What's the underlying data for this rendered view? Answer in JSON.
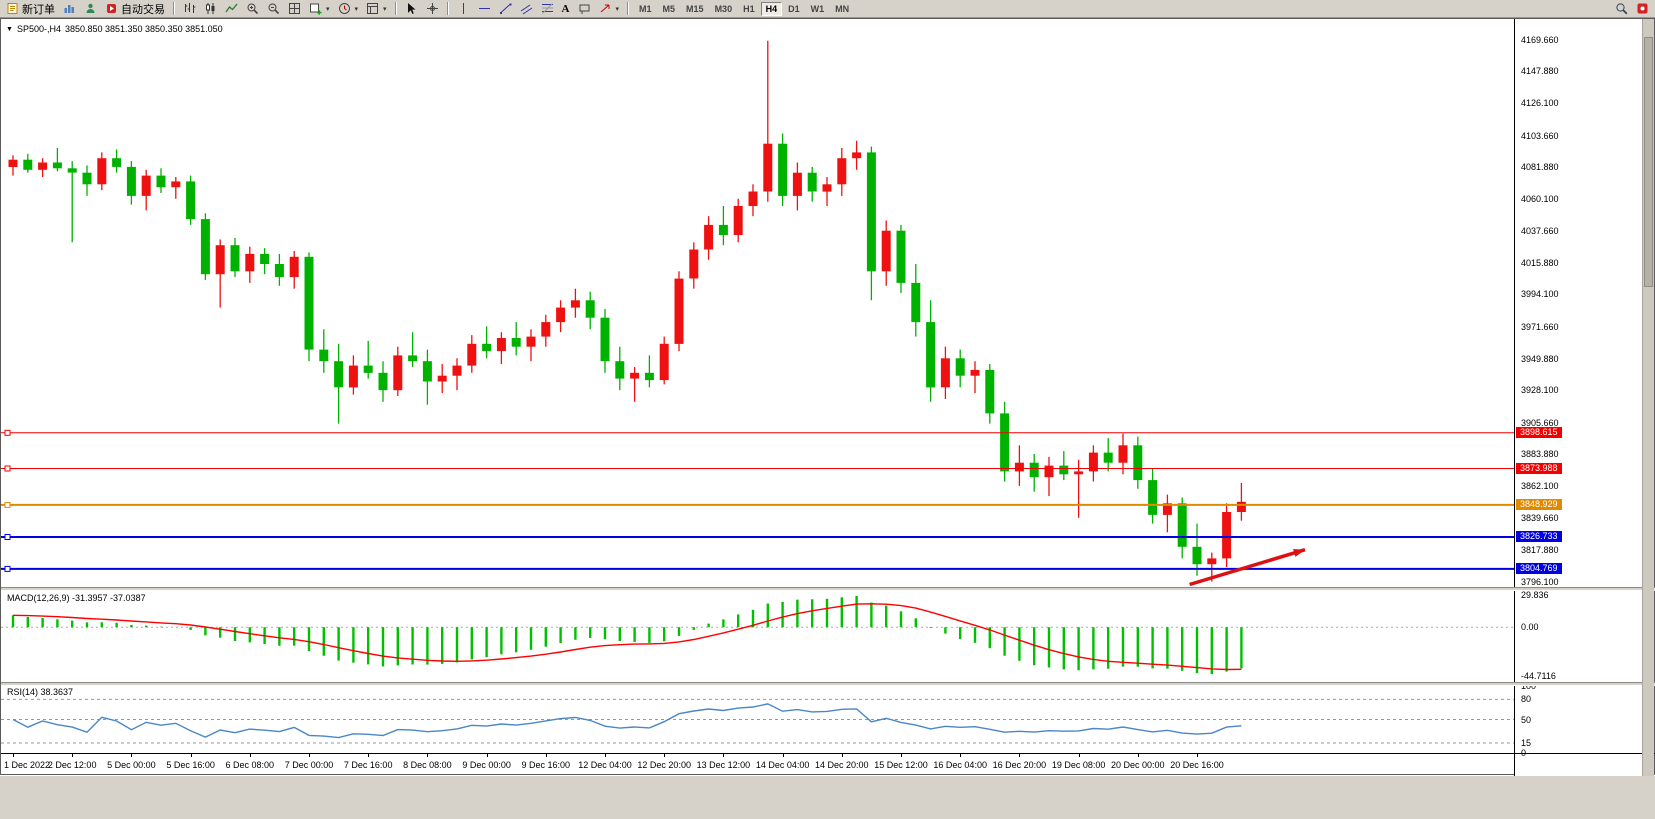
{
  "colors": {
    "bull": "#ee1111",
    "bear": "#00b200",
    "macd_hist": "#00c000",
    "macd_signal": "#ff0000",
    "rsi_line": "#4a86c8",
    "arrow": "#dd1111"
  },
  "toolbar": {
    "new_order": "新订单",
    "auto_trading": "自动交易",
    "text_tool": "A",
    "timeframes": [
      "M1",
      "M5",
      "M15",
      "M30",
      "H1",
      "H4",
      "D1",
      "W1",
      "MN"
    ],
    "active_timeframe": "H4"
  },
  "chart_header": {
    "dropdown": "▼",
    "symbol_period": "SP500-,H4",
    "ohlc": "3850.850 3851.350 3850.350 3851.050"
  },
  "indicators": {
    "macd_label": "MACD(12,26,9) -31.3957 -37.0387",
    "rsi_label": "RSI(14) 38.3637"
  },
  "chart_data": {
    "type": "candlestick",
    "symbol": "SP500-",
    "timeframe": "H4",
    "price_ticks": [
      "4169.660",
      "4147.880",
      "4126.100",
      "4103.660",
      "4081.880",
      "4060.100",
      "4037.660",
      "4015.880",
      "3994.100",
      "3971.660",
      "3949.880",
      "3928.100",
      "3905.660",
      "3883.880",
      "3862.100",
      "3839.660",
      "3817.880",
      "3796.100"
    ],
    "hlines": [
      {
        "price": 3898.615,
        "label": "3898.615",
        "color": "#f40000",
        "width": 1
      },
      {
        "price": 3873.988,
        "label": "3873.988",
        "color": "#f40000",
        "width": 1
      },
      {
        "price": 3848.929,
        "label": "3848.929",
        "color": "#e08a00",
        "width": 2
      },
      {
        "price": 3826.733,
        "label": "3826.733",
        "color": "#0000e0",
        "width": 2
      },
      {
        "price": 3804.769,
        "label": "3804.769",
        "color": "#0000e0",
        "width": 2
      }
    ],
    "candles": [
      [
        4082,
        4090,
        4076,
        4087
      ],
      [
        4087,
        4091,
        4078,
        4080
      ],
      [
        4080,
        4088,
        4075,
        4085
      ],
      [
        4085,
        4095,
        4079,
        4081
      ],
      [
        4081,
        4086,
        4030,
        4078
      ],
      [
        4078,
        4083,
        4062,
        4070
      ],
      [
        4070,
        4092,
        4066,
        4088
      ],
      [
        4088,
        4094,
        4078,
        4082
      ],
      [
        4082,
        4086,
        4056,
        4062
      ],
      [
        4062,
        4080,
        4052,
        4076
      ],
      [
        4076,
        4081,
        4064,
        4068
      ],
      [
        4068,
        4075,
        4060,
        4072
      ],
      [
        4072,
        4076,
        4042,
        4046
      ],
      [
        4046,
        4050,
        4004,
        4008
      ],
      [
        4008,
        4032,
        3985,
        4028
      ],
      [
        4028,
        4033,
        4006,
        4010
      ],
      [
        4010,
        4027,
        4002,
        4022
      ],
      [
        4022,
        4026,
        4008,
        4015
      ],
      [
        4015,
        4022,
        4000,
        4006
      ],
      [
        4006,
        4024,
        3998,
        4020
      ],
      [
        4020,
        4023,
        3948,
        3956
      ],
      [
        3956,
        3970,
        3940,
        3948
      ],
      [
        3948,
        3960,
        3905,
        3930
      ],
      [
        3930,
        3952,
        3925,
        3945
      ],
      [
        3945,
        3962,
        3936,
        3940
      ],
      [
        3940,
        3948,
        3920,
        3928
      ],
      [
        3928,
        3958,
        3924,
        3952
      ],
      [
        3952,
        3968,
        3944,
        3948
      ],
      [
        3948,
        3956,
        3918,
        3934
      ],
      [
        3934,
        3946,
        3926,
        3938
      ],
      [
        3938,
        3950,
        3928,
        3945
      ],
      [
        3945,
        3966,
        3940,
        3960
      ],
      [
        3960,
        3972,
        3950,
        3955
      ],
      [
        3955,
        3968,
        3946,
        3964
      ],
      [
        3964,
        3975,
        3952,
        3958
      ],
      [
        3958,
        3970,
        3948,
        3965
      ],
      [
        3965,
        3980,
        3958,
        3975
      ],
      [
        3975,
        3990,
        3968,
        3985
      ],
      [
        3985,
        3998,
        3978,
        3990
      ],
      [
        3990,
        3996,
        3970,
        3978
      ],
      [
        3978,
        3984,
        3940,
        3948
      ],
      [
        3948,
        3958,
        3928,
        3936
      ],
      [
        3936,
        3944,
        3920,
        3940
      ],
      [
        3940,
        3952,
        3930,
        3935
      ],
      [
        3935,
        3965,
        3932,
        3960
      ],
      [
        3960,
        4010,
        3955,
        4005
      ],
      [
        4005,
        4030,
        3998,
        4025
      ],
      [
        4025,
        4048,
        4018,
        4042
      ],
      [
        4042,
        4055,
        4028,
        4035
      ],
      [
        4035,
        4060,
        4030,
        4055
      ],
      [
        4055,
        4070,
        4048,
        4065
      ],
      [
        4065,
        4169,
        4058,
        4098
      ],
      [
        4098,
        4105,
        4055,
        4062
      ],
      [
        4062,
        4085,
        4052,
        4078
      ],
      [
        4078,
        4082,
        4058,
        4065
      ],
      [
        4065,
        4075,
        4055,
        4070
      ],
      [
        4070,
        4095,
        4062,
        4088
      ],
      [
        4088,
        4100,
        4080,
        4092
      ],
      [
        4092,
        4096,
        3990,
        4010
      ],
      [
        4010,
        4045,
        4000,
        4038
      ],
      [
        4038,
        4042,
        3995,
        4002
      ],
      [
        4002,
        4015,
        3965,
        3975
      ],
      [
        3975,
        3990,
        3920,
        3930
      ],
      [
        3930,
        3958,
        3922,
        3950
      ],
      [
        3950,
        3956,
        3930,
        3938
      ],
      [
        3938,
        3948,
        3926,
        3942
      ],
      [
        3942,
        3946,
        3905,
        3912
      ],
      [
        3912,
        3920,
        3865,
        3872
      ],
      [
        3872,
        3890,
        3862,
        3878
      ],
      [
        3878,
        3884,
        3858,
        3868
      ],
      [
        3868,
        3882,
        3855,
        3876
      ],
      [
        3876,
        3886,
        3866,
        3870
      ],
      [
        3870,
        3880,
        3840,
        3872
      ],
      [
        3872,
        3890,
        3865,
        3885
      ],
      [
        3885,
        3895,
        3872,
        3878
      ],
      [
        3878,
        3898,
        3870,
        3890
      ],
      [
        3890,
        3896,
        3860,
        3866
      ],
      [
        3866,
        3874,
        3836,
        3842
      ],
      [
        3842,
        3856,
        3830,
        3850
      ],
      [
        3850,
        3854,
        3812,
        3820
      ],
      [
        3820,
        3836,
        3800,
        3808
      ],
      [
        3808,
        3816,
        3796,
        3812
      ],
      [
        3812,
        3850,
        3806,
        3844
      ],
      [
        3844,
        3864,
        3838,
        3851
      ]
    ],
    "time_labels": [
      "1 Dec 2022",
      "2 Dec 12:00",
      "5 Dec 00:00",
      "5 Dec 16:00",
      "6 Dec 08:00",
      "7 Dec 00:00",
      "7 Dec 16:00",
      "8 Dec 08:00",
      "9 Dec 00:00",
      "9 Dec 16:00",
      "12 Dec 04:00",
      "12 Dec 20:00",
      "13 Dec 12:00",
      "14 Dec 04:00",
      "14 Dec 20:00",
      "15 Dec 12:00",
      "16 Dec 04:00",
      "16 Dec 20:00",
      "19 Dec 08:00",
      "20 Dec 00:00",
      "20 Dec 16:00"
    ],
    "macd_axis": [
      "29.836",
      "0.00",
      "-44.7116"
    ],
    "rsi_levels": [
      "100",
      "80",
      "50",
      "15",
      "0"
    ],
    "arrow": {
      "from_index": 79.5,
      "from_price": 3794,
      "to_index": 87.3,
      "to_price": 3818
    }
  }
}
